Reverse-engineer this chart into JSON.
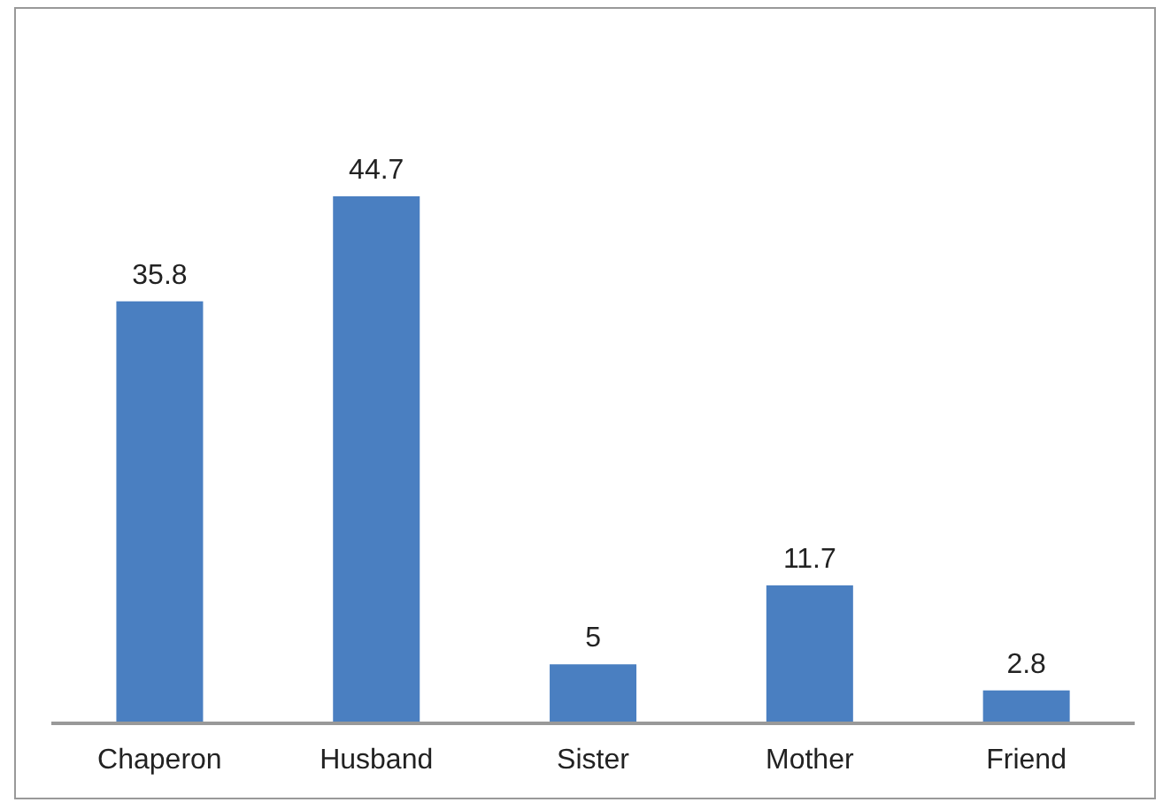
{
  "chart_data": {
    "type": "bar",
    "categories": [
      "Chaperon",
      "Husband",
      "Sister",
      "Mother",
      "Friend"
    ],
    "values": [
      35.8,
      44.7,
      5,
      11.7,
      2.8
    ],
    "color": "#4a7fc1",
    "data_labels": true,
    "tick_labels": "x",
    "grid": false,
    "legend": false
  }
}
